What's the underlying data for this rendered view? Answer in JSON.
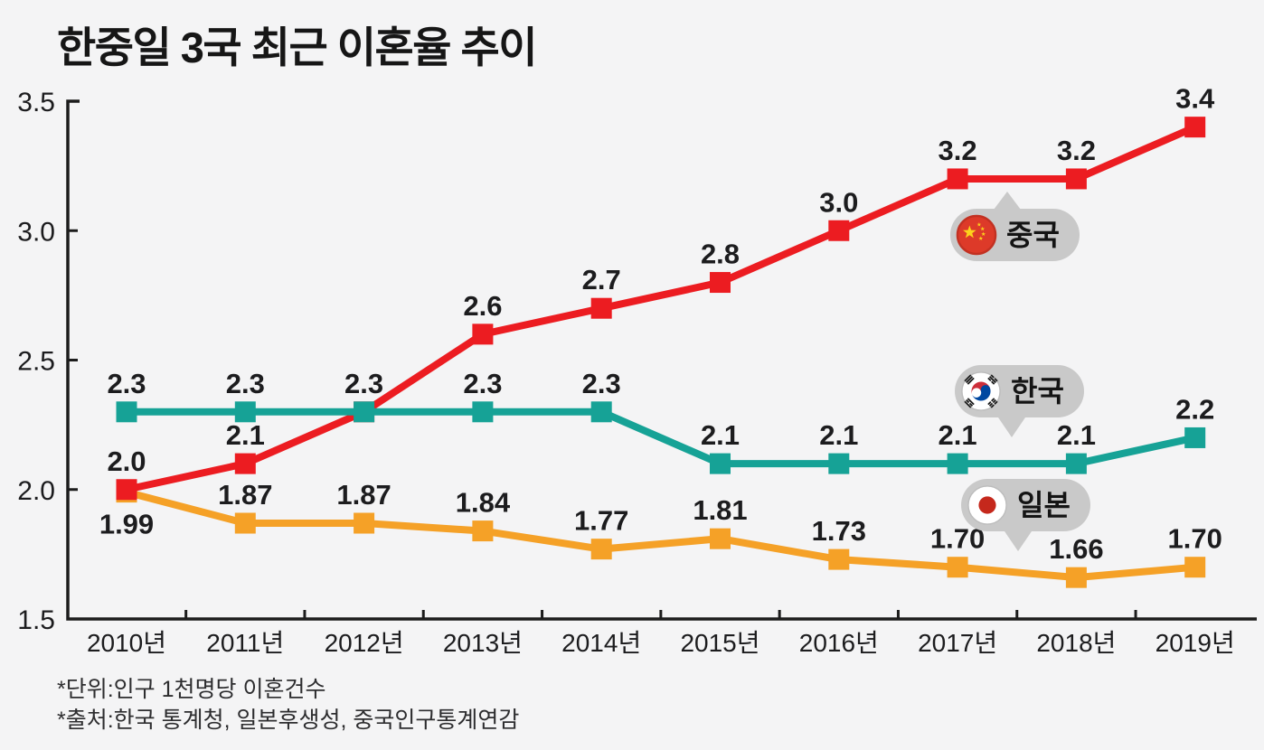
{
  "title": "한중일 3국 최근 이혼율 추이",
  "footnotes": {
    "unit": "*단위:인구 1천명당 이혼건수",
    "source": "*출처:한국 통계청, 일본후생성, 중국인구통계연감"
  },
  "colors": {
    "background": "#f4f4f5",
    "axis": "#1c1c1c",
    "label_text": "#1c1c1e",
    "callout_bg": "#c9c9c9",
    "china_red": "#ec1c21",
    "korea_teal": "#16a296",
    "japan_orange": "#f5a127"
  },
  "chart_data": {
    "type": "line",
    "title": "한중일 3국 최근 이혼율 추이",
    "xlabel": "",
    "ylabel": "",
    "ylim": [
      1.5,
      3.5
    ],
    "grid": false,
    "y_ticks": [
      "1.5",
      "2.0",
      "2.5",
      "3.0",
      "3.5"
    ],
    "categories": [
      "2010년",
      "2011년",
      "2012년",
      "2013년",
      "2014년",
      "2015년",
      "2016년",
      "2017년",
      "2018년",
      "2019년"
    ],
    "series": [
      {
        "id": "japan",
        "name": "일본",
        "color": "#f5a127",
        "values": [
          1.99,
          1.87,
          1.87,
          1.84,
          1.77,
          1.81,
          1.73,
          1.7,
          1.66,
          1.7
        ],
        "labels": [
          "1.99",
          "1.87",
          "1.87",
          "1.84",
          "1.77",
          "1.81",
          "1.73",
          "1.70",
          "1.66",
          "1.70"
        ],
        "label_side": [
          "below",
          "above",
          "above",
          "above",
          "above",
          "above",
          "above",
          "above",
          "above",
          "above"
        ]
      },
      {
        "id": "china",
        "name": "중국",
        "color": "#ec1c21",
        "values": [
          2.0,
          2.1,
          2.3,
          2.6,
          2.7,
          2.8,
          3.0,
          3.2,
          3.2,
          3.4
        ],
        "labels": [
          "2.0",
          "2.1",
          "",
          "2.6",
          "2.7",
          "2.8",
          "3.0",
          "3.2",
          "3.2",
          "3.4"
        ],
        "label_side": [
          "above",
          "above",
          "above",
          "above",
          "above",
          "above",
          "above",
          "above",
          "above",
          "above"
        ]
      },
      {
        "id": "korea",
        "name": "한국",
        "color": "#16a296",
        "values": [
          2.3,
          2.3,
          2.3,
          2.3,
          2.3,
          2.1,
          2.1,
          2.1,
          2.1,
          2.2
        ],
        "labels": [
          "2.3",
          "2.3",
          "2.3",
          "2.3",
          "2.3",
          "2.1",
          "2.1",
          "2.1",
          "2.1",
          "2.2"
        ],
        "label_side": [
          "above",
          "above",
          "above",
          "above",
          "above",
          "above",
          "above",
          "above",
          "above",
          "above"
        ]
      }
    ],
    "legend": [
      {
        "label": "중국",
        "flag": "china-flag-icon",
        "pointer": "up"
      },
      {
        "label": "한국",
        "flag": "korea-flag-icon",
        "pointer": "down"
      },
      {
        "label": "일본",
        "flag": "japan-flag-icon",
        "pointer": "down"
      }
    ],
    "legend_position": "inside-right"
  }
}
